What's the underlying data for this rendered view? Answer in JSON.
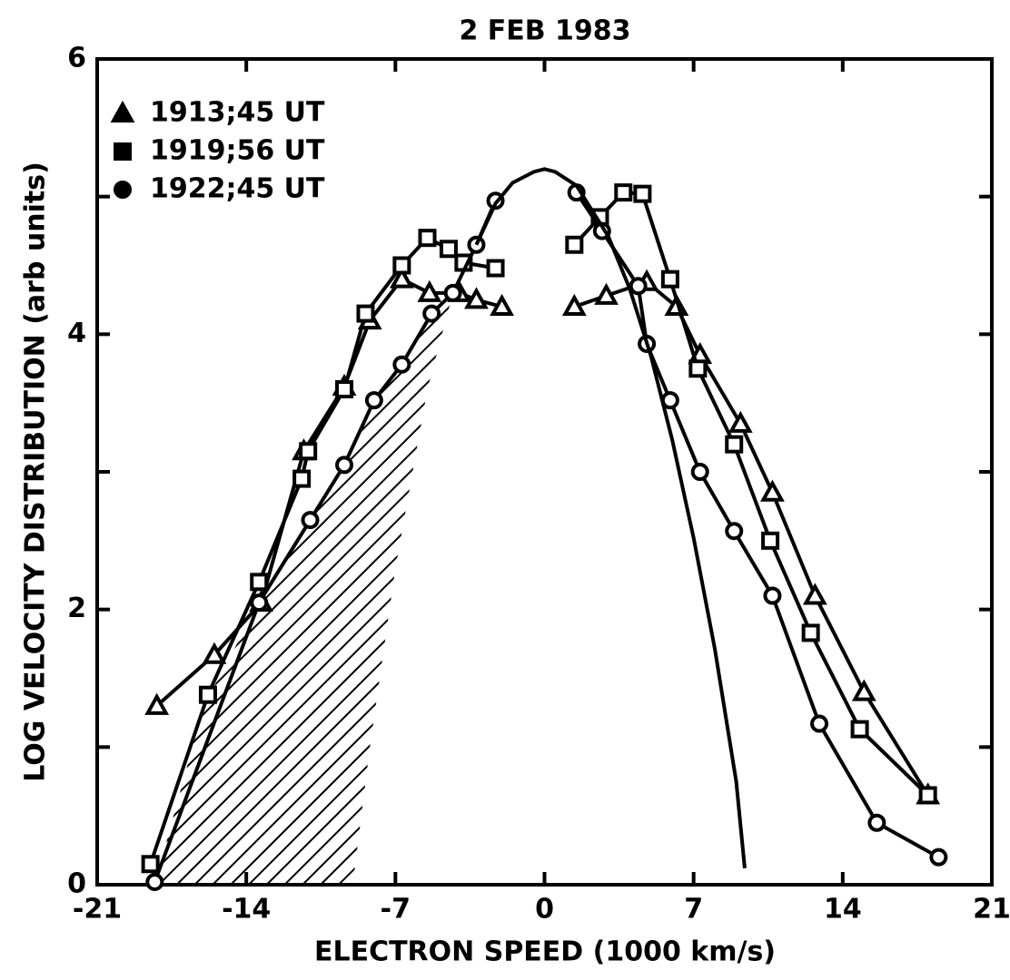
{
  "chart_data": {
    "type": "line",
    "title": "2 FEB 1983",
    "xlabel": "ELECTRON SPEED (1000 km/s)",
    "ylabel": "LOG VELOCITY DISTRIBUTION (arb units)",
    "xlim": [
      -21,
      21
    ],
    "xticks": [
      -21,
      -14,
      -7,
      0,
      7,
      14,
      21
    ],
    "ylim": [
      0,
      6
    ],
    "yticks": [
      0,
      2,
      4,
      6
    ],
    "yminor": [
      1,
      3,
      5
    ],
    "legend": "upper left",
    "series": [
      {
        "name": "1913;45 UT",
        "marker": "triangle",
        "color": "#000000",
        "x": [
          -18.2,
          -15.5,
          -13.3,
          -11.3,
          -9.4,
          -8.2,
          -6.7,
          -5.4,
          -4.0,
          -3.2,
          -2.0,
          null,
          1.4,
          2.9,
          4.8,
          6.2,
          7.3,
          9.2,
          10.7,
          12.7,
          15.0,
          18.0
        ],
        "values": [
          1.3,
          1.67,
          2.05,
          3.15,
          3.62,
          4.1,
          4.4,
          4.3,
          4.3,
          4.25,
          4.2,
          null,
          4.2,
          4.28,
          4.38,
          4.2,
          3.85,
          3.35,
          2.85,
          2.1,
          1.4,
          0.65
        ]
      },
      {
        "name": "1919;56 UT",
        "marker": "square",
        "color": "#000000",
        "x": [
          -18.5,
          -15.8,
          -13.4,
          -11.4,
          -11.1,
          -9.4,
          -8.4,
          -6.7,
          -5.5,
          -4.5,
          -3.8,
          -2.3,
          null,
          1.4,
          2.6,
          3.7,
          4.6,
          5.9,
          7.2,
          8.9,
          10.6,
          12.5,
          14.8,
          18.0
        ],
        "values": [
          0.15,
          1.38,
          2.2,
          2.95,
          3.15,
          3.6,
          4.15,
          4.5,
          4.7,
          4.62,
          4.52,
          4.48,
          null,
          4.65,
          4.85,
          5.03,
          5.02,
          4.4,
          3.75,
          3.2,
          2.5,
          1.83,
          1.13,
          0.65
        ]
      },
      {
        "name": "1922;45 UT",
        "marker": "circle",
        "color": "#000000",
        "x": [
          -18.3,
          -13.4,
          -11.0,
          -9.4,
          -8.0,
          -6.7,
          -5.3,
          -4.3,
          -3.2,
          -2.3,
          null,
          1.5,
          2.7,
          4.4,
          4.8,
          5.9,
          7.3,
          8.9,
          10.7,
          12.9,
          15.6,
          18.5
        ],
        "values": [
          0.02,
          2.05,
          2.65,
          3.05,
          3.52,
          3.78,
          4.15,
          4.3,
          4.65,
          4.97,
          null,
          5.03,
          4.75,
          4.35,
          3.93,
          3.52,
          3.0,
          2.57,
          2.1,
          1.17,
          0.45,
          0.2
        ]
      },
      {
        "marker": "none",
        "color": "#000000",
        "x": [
          -3.2,
          -2.3,
          -1.5,
          -0.5,
          0,
          0.5,
          1.5,
          3,
          4,
          5,
          6,
          7,
          8,
          9,
          9.4
        ],
        "values": [
          4.65,
          4.95,
          5.1,
          5.18,
          5.2,
          5.18,
          5.08,
          4.71,
          4.33,
          3.84,
          3.23,
          2.52,
          1.71,
          0.75,
          0.12
        ]
      }
    ],
    "shaded_region": {
      "x": [
        -18.3,
        -16.0,
        -13.4,
        -11.0,
        -9.4,
        -8.0,
        -6.7,
        -5.3,
        -4.3,
        -5.5,
        -7.0,
        -8.2,
        -9.0
      ],
      "values": [
        0,
        1.3,
        2.05,
        2.65,
        3.05,
        3.52,
        3.78,
        4.15,
        4.3,
        3.6,
        2.3,
        1.0,
        0
      ]
    }
  }
}
